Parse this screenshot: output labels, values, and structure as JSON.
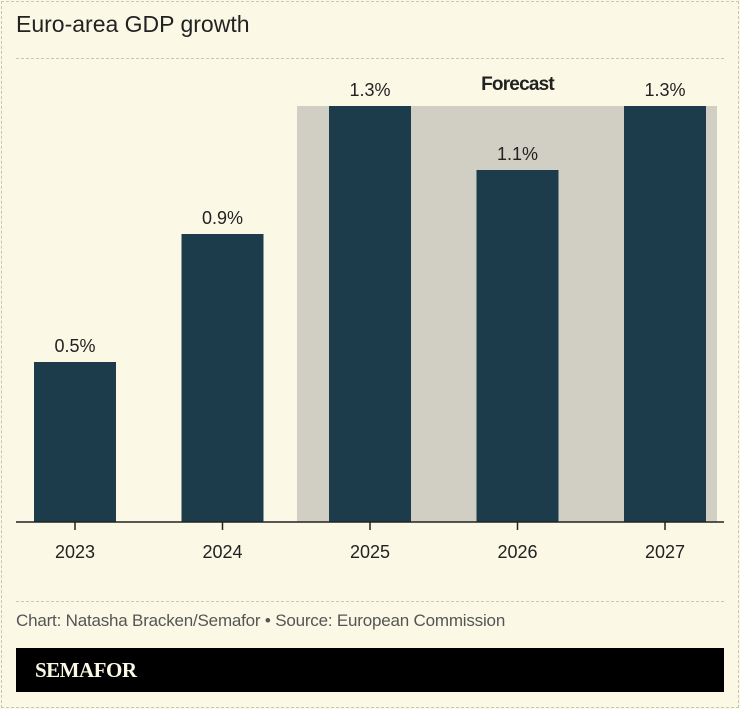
{
  "title": "Euro-area GDP growth",
  "chart_data": {
    "type": "bar",
    "categories": [
      "2023",
      "2024",
      "2025",
      "2026",
      "2027"
    ],
    "values": [
      0.5,
      0.9,
      1.3,
      1.1,
      1.3
    ],
    "data_labels": [
      "0.5%",
      "0.9%",
      "1.3%",
      "1.1%",
      "1.3%"
    ],
    "forecast_categories": [
      "2025",
      "2026",
      "2027"
    ],
    "annotation": "Forecast",
    "ylim": [
      0,
      1.3
    ],
    "grid": false,
    "colors": {
      "bar": "#1c3b4b",
      "forecast_shade": "#d1cfc3",
      "background": "#fbf9e6"
    }
  },
  "footer": {
    "credit": "Chart: Natasha Bracken/Semafor • Source: European Commission",
    "brand": "SEMAFOR"
  }
}
